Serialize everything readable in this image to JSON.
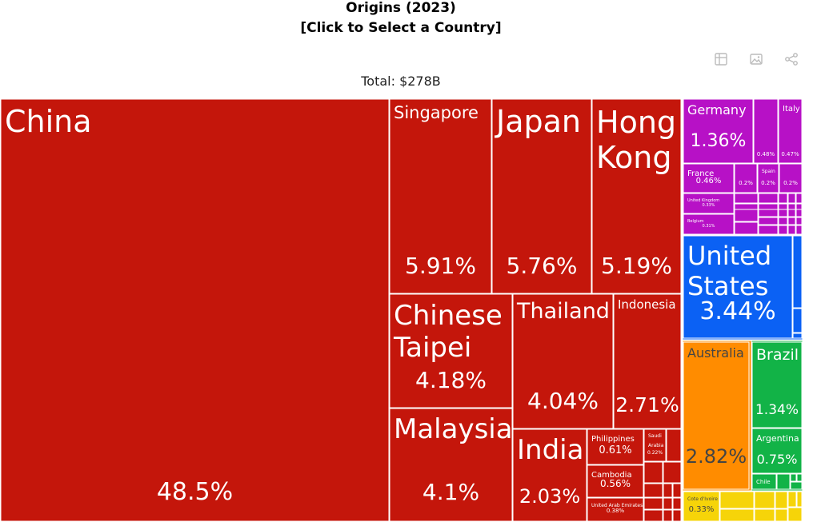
{
  "title_line1": "Origins (2023)",
  "title_line2": "[Click to Select a Country]",
  "total_label": "Total: $278B",
  "toolbar": {
    "icons": [
      "table-icon",
      "image-icon",
      "share-icon"
    ]
  },
  "colors": {
    "asia": "#c4160b",
    "europe": "#b711c6",
    "north_america": "#0b61f4",
    "oceania": "#ff8c00",
    "south_america": "#12b347",
    "africa": "#f6d409",
    "border": "#ffffff"
  },
  "chart_data": {
    "type": "treemap",
    "unit": "% of total",
    "tiles": [
      {
        "label": "China",
        "value": 48.5,
        "region": "asia"
      },
      {
        "label": "Singapore",
        "value": 5.91,
        "region": "asia"
      },
      {
        "label": "Japan",
        "value": 5.76,
        "region": "asia"
      },
      {
        "label": "Hong Kong",
        "value": 5.19,
        "region": "asia"
      },
      {
        "label": "Chinese Taipei",
        "value": 4.18,
        "region": "asia"
      },
      {
        "label": "Thailand",
        "value": 4.04,
        "region": "asia"
      },
      {
        "label": "Indonesia",
        "value": 2.71,
        "region": "asia"
      },
      {
        "label": "Malaysia",
        "value": 4.1,
        "region": "asia"
      },
      {
        "label": "India",
        "value": 2.03,
        "region": "asia"
      },
      {
        "label": "Philippines",
        "value": 0.61,
        "region": "asia"
      },
      {
        "label": "Saudi Arabia",
        "value": 0.22,
        "region": "asia"
      },
      {
        "label": "Cambodia",
        "value": 0.56,
        "region": "asia"
      },
      {
        "label": "United Arab Emirates",
        "value": 0.38,
        "region": "asia"
      },
      {
        "label": "Germany",
        "value": 1.36,
        "region": "europe"
      },
      {
        "label": "",
        "value": 0.48,
        "region": "europe"
      },
      {
        "label": "Italy",
        "value": 0.47,
        "region": "europe"
      },
      {
        "label": "France",
        "value": 0.46,
        "region": "europe"
      },
      {
        "label": "",
        "value": 0.2,
        "region": "europe"
      },
      {
        "label": "Spain",
        "value": 0.2,
        "region": "europe"
      },
      {
        "label": "",
        "value": 0.2,
        "region": "europe"
      },
      {
        "label": "United Kingdom",
        "value": 0.33,
        "region": "europe"
      },
      {
        "label": "Belgium",
        "value": 0.31,
        "region": "europe"
      },
      {
        "label": "United States",
        "value": 3.44,
        "region": "north_america"
      },
      {
        "label": "Australia",
        "value": 2.82,
        "region": "oceania"
      },
      {
        "label": "Brazil",
        "value": 1.34,
        "region": "south_america"
      },
      {
        "label": "Argentina",
        "value": 0.75,
        "region": "south_america"
      },
      {
        "label": "Chile",
        "value": null,
        "region": "south_america"
      },
      {
        "label": "Cote d'Ivoire",
        "value": 0.33,
        "region": "africa"
      }
    ]
  }
}
